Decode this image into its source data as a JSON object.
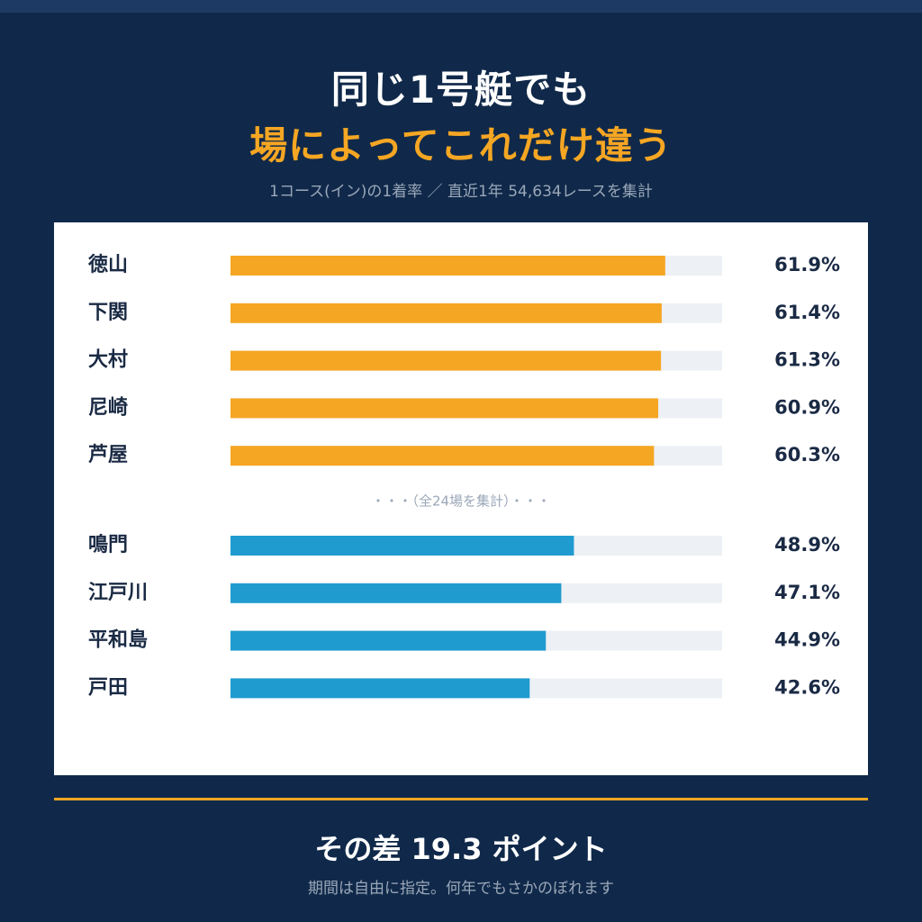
{
  "header": {
    "title_line1": "同じ1号艇でも",
    "title_line2": "場によってこれだけ違う",
    "subtitle": "1コース(イン)の1着率 ／ 直近1年 54,634レースを集計"
  },
  "chart_data": {
    "type": "bar",
    "orientation": "horizontal",
    "xlim": [
      0,
      70
    ],
    "value_suffix": "%",
    "ellipsis_label": "・・・（全24場を集計）・・・",
    "colors": {
      "top": "#f5a623",
      "bottom": "#1f9bcf",
      "track": "#edf0f4"
    },
    "groups": [
      {
        "name": "top",
        "categories": [
          "徳山",
          "下関",
          "大村",
          "尼崎",
          "芦屋"
        ],
        "values": [
          61.9,
          61.4,
          61.3,
          60.9,
          60.3
        ]
      },
      {
        "name": "bottom",
        "categories": [
          "鳴門",
          "江戸川",
          "平和島",
          "戸田"
        ],
        "values": [
          48.9,
          47.1,
          44.9,
          42.6
        ]
      }
    ]
  },
  "footer": {
    "difference": "その差 19.3 ポイント",
    "note": "期間は自由に指定。何年でもさかのぼれます"
  }
}
